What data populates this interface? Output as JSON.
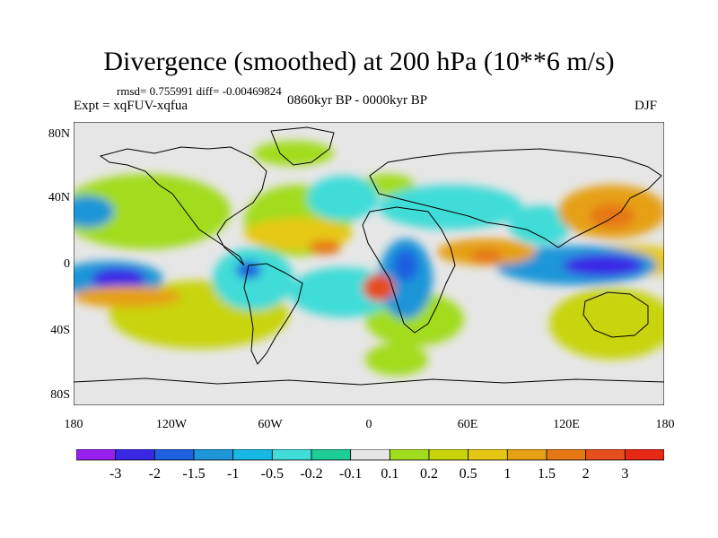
{
  "title": "Divergence (smoothed) at 200 hPa (10**6 m/s)",
  "stats": "rmsd= 0.755991 diff= -0.00469824",
  "experiment": "Expt = xqFUV-xqfua",
  "period": "0860kyr BP - 0000kyr BP",
  "season": "DJF",
  "map": {
    "background_color": "#e6e6e6",
    "lat_ticks": [
      "80N",
      "40N",
      "0",
      "40S",
      "80S"
    ],
    "lon_ticks": [
      "180",
      "120W",
      "60W",
      "0",
      "60E",
      "120E",
      "180"
    ]
  },
  "colorbar": {
    "colors": [
      "#9a20f0",
      "#3a28e6",
      "#1e60e0",
      "#1e96d8",
      "#18b8e4",
      "#40dcd8",
      "#1ecc96",
      "#e6e6e6",
      "#a2dc1e",
      "#c8d40a",
      "#e6c814",
      "#e6a014",
      "#e67814",
      "#e64e1e",
      "#e62814"
    ],
    "labels": [
      "-3",
      "-2",
      "-1.5",
      "-1",
      "-0.5",
      "-0.2",
      "-0.1",
      "0.1",
      "0.2",
      "0.5",
      "1",
      "1.5",
      "2",
      "3"
    ]
  }
}
